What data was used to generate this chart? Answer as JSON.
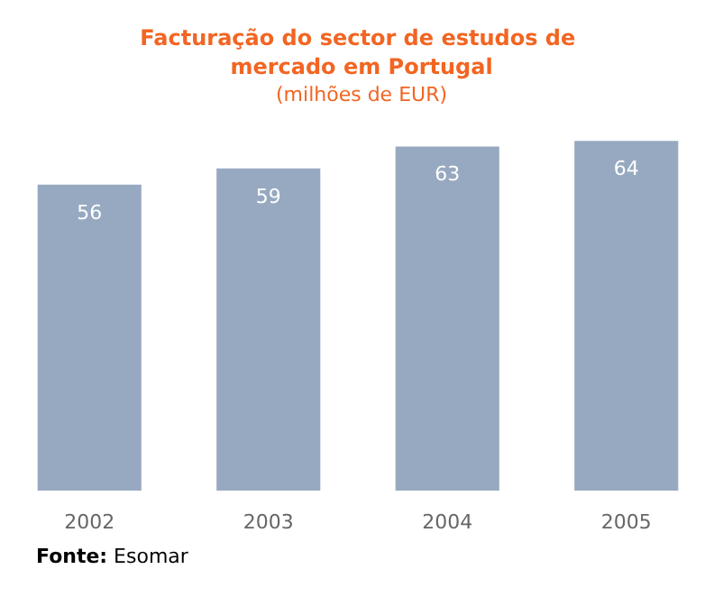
{
  "chart_data": {
    "type": "bar",
    "title": "Facturação do sector de estudos de mercado em Portugal",
    "subtitle": "(milhões de EUR)",
    "categories": [
      "2002",
      "2003",
      "2004",
      "2005"
    ],
    "values": [
      56,
      59,
      63,
      64
    ],
    "color": "#97a9c0",
    "data_labels": true,
    "annotations": [
      "Fonte: Esomar"
    ]
  }
}
